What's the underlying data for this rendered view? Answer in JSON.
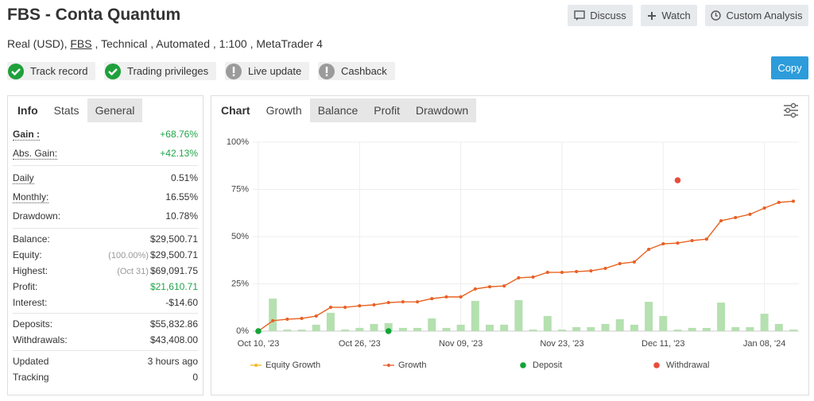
{
  "header": {
    "title": "FBS - Conta Quantum",
    "subtitle": [
      "Real (USD),",
      "FBS",
      ", Technical , Automated , 1:100 , MetaTrader 4"
    ]
  },
  "buttons": [
    "Discuss",
    "Watch",
    "Custom Analysis"
  ],
  "copy_button": "Copy",
  "badges": [
    {
      "label": "Track record",
      "status": "ok"
    },
    {
      "label": "Trading privileges",
      "status": "ok"
    },
    {
      "label": "Live update",
      "status": "warn"
    },
    {
      "label": "Cashback",
      "status": "warn"
    }
  ],
  "stats": {
    "tabs": [
      "Info",
      "Stats",
      "General"
    ],
    "groups": [
      {
        "rows": [
          {
            "label": "Gain :",
            "value": "+68.76%",
            "color": "#22a34a"
          },
          {
            "label": "Abs. Gain:",
            "value": "+42.13%",
            "color": "#22a34a"
          }
        ]
      },
      {
        "rows": [
          {
            "label": "Daily",
            "value": "0.51%"
          },
          {
            "label": "Monthly:",
            "value": "16.55%"
          },
          {
            "label": "Drawdown:",
            "value": "10.78%"
          }
        ]
      },
      {
        "rows": [
          {
            "label": "Balance:",
            "value": "$29,500.71"
          },
          {
            "label": "Equity:",
            "note": "(100.00%)",
            "value": "$29,500.71"
          },
          {
            "label": "Highest:",
            "note": "(Oct 31)",
            "value": "$69,091.75"
          },
          {
            "label": "Profit:",
            "value": "$21,610.71",
            "color": "#22a34a"
          },
          {
            "label": "Interest:",
            "value": "-$14.60"
          }
        ]
      },
      {
        "rows": [
          {
            "label": "Deposits:",
            "value": "$55,832.86"
          },
          {
            "label": "Withdrawals:",
            "value": "$43,408.00"
          }
        ]
      },
      {
        "rows": [
          {
            "label": "Updated",
            "value": "3 hours ago"
          },
          {
            "label": "Tracking",
            "value": "0"
          }
        ]
      }
    ]
  },
  "chart_tabs": [
    "Chart",
    "Growth",
    "Balance",
    "Profit",
    "Drawdown"
  ],
  "chart_data": {
    "type": "line",
    "categories": [
      "Oct 10, '23",
      null,
      null,
      null,
      null,
      null,
      null,
      "Oct 26, '23",
      null,
      null,
      null,
      null,
      null,
      null,
      "Nov 09, '23",
      null,
      null,
      null,
      null,
      null,
      null,
      "Nov 23, '23",
      null,
      null,
      null,
      null,
      null,
      null,
      "Dec 11, '23",
      null,
      null,
      null,
      null,
      null,
      null,
      "Jan 08, '24",
      null,
      null
    ],
    "ylim": [
      0,
      100
    ],
    "yticks": [
      {
        "value": 0,
        "label": "0%"
      },
      {
        "value": 25,
        "label": "25%"
      },
      {
        "value": 50,
        "label": "50%"
      },
      {
        "value": 75,
        "label": "75%"
      },
      {
        "value": 100,
        "label": "100%"
      }
    ],
    "y2lim": [
      0,
      100
    ],
    "grid": true,
    "series": [
      {
        "name": "Equity Growth",
        "color": "#f5b91e",
        "values": [
          0,
          5.5,
          6.3,
          6.7,
          8,
          12.6,
          12.6,
          13.4,
          13.9,
          15.1,
          15.5,
          15.5,
          17.2,
          18.1,
          18.1,
          22.3,
          23.5,
          23.9,
          28.2,
          28.6,
          31.1,
          31.1,
          31.5,
          31.9,
          33.2,
          35.7,
          36.6,
          43.3,
          46.2,
          46.6,
          47.9,
          48.7,
          58.4,
          60.1,
          61.8,
          65.1,
          68.1,
          68.76
        ]
      },
      {
        "name": "Growth",
        "color": "#e8602c",
        "values": [
          0,
          5.5,
          6.3,
          6.7,
          8,
          12.6,
          12.6,
          13.4,
          13.9,
          15.1,
          15.5,
          15.5,
          17.2,
          18.1,
          18.1,
          22.3,
          23.5,
          23.9,
          28.2,
          28.6,
          31.1,
          31.1,
          31.5,
          31.9,
          33.2,
          35.7,
          36.6,
          43.3,
          46.2,
          46.6,
          47.9,
          48.7,
          58.4,
          60.1,
          61.8,
          65.1,
          68.1,
          68.76
        ]
      },
      {
        "name": "Deposit",
        "color": "#12a536",
        "values": [
          0,
          null,
          null,
          null,
          null,
          null,
          null,
          null,
          null,
          0,
          null,
          null,
          null,
          null,
          null,
          null,
          null,
          null,
          null,
          null,
          null,
          null,
          null,
          null,
          null,
          null,
          null,
          null,
          null,
          null,
          null,
          null,
          null,
          null,
          null,
          null,
          null,
          null
        ]
      },
      {
        "name": "Withdrawal",
        "color": "#e84c3d",
        "values": [
          null,
          null,
          null,
          null,
          null,
          null,
          null,
          null,
          null,
          null,
          null,
          null,
          null,
          null,
          null,
          null,
          null,
          null,
          null,
          null,
          null,
          null,
          null,
          null,
          null,
          null,
          null,
          null,
          null,
          79.8,
          null,
          null,
          null,
          null,
          null,
          null,
          null,
          null
        ]
      }
    ],
    "bars": {
      "color": "#b5e0b0",
      "axis": "y2",
      "values": [
        null,
        17.2,
        0.8,
        0.8,
        3.4,
        9.7,
        0.8,
        1.7,
        3.8,
        4.2,
        1.7,
        1.7,
        6.7,
        1.7,
        3.4,
        16,
        3.4,
        3.4,
        16.4,
        0.8,
        8,
        0.8,
        2.1,
        2.1,
        3.8,
        6.3,
        3.4,
        15.5,
        8,
        0.8,
        1.7,
        1.7,
        15.1,
        2.1,
        2.1,
        9.2,
        3.8,
        0.8
      ]
    }
  }
}
